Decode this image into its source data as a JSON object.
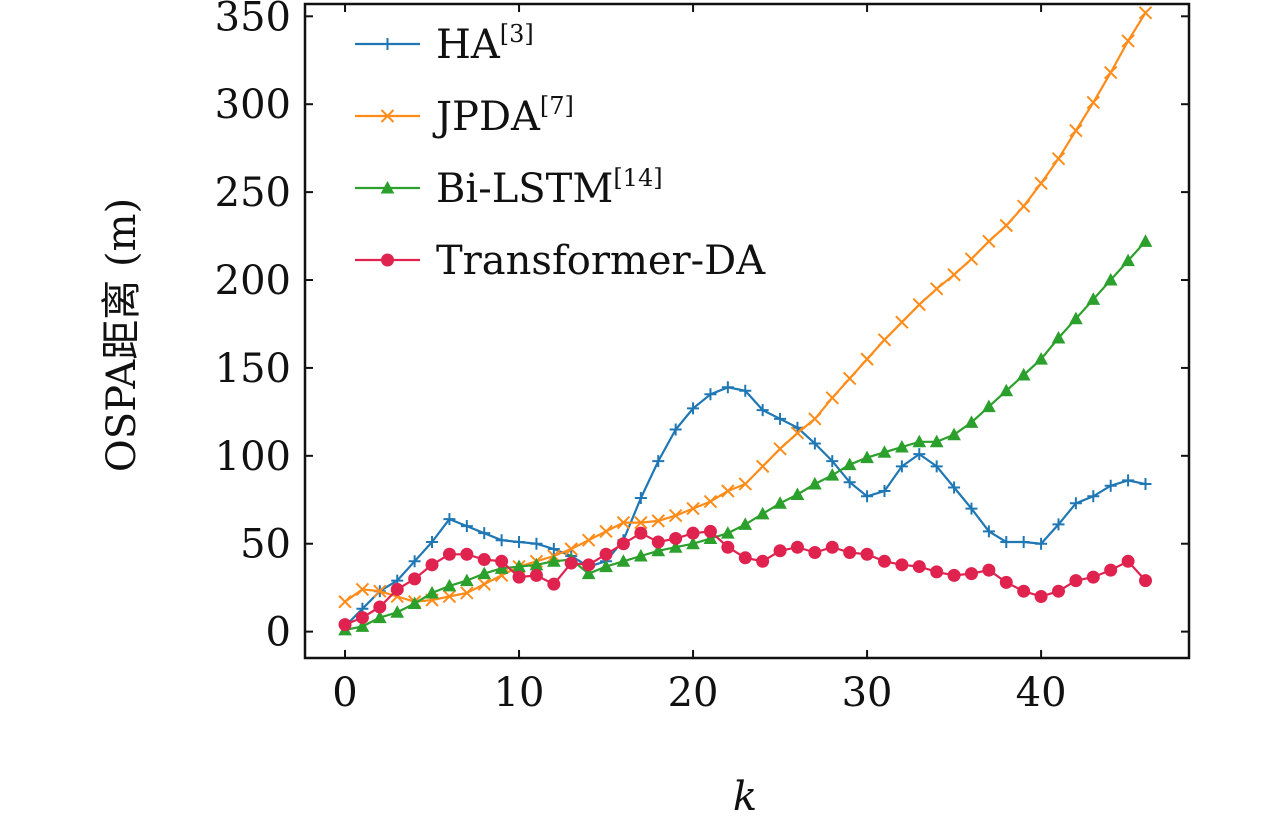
{
  "chart_data": {
    "type": "line",
    "xlabel": "k",
    "ylabel": "OSPA距离 (m)",
    "xlim": [
      -2.3,
      48.5
    ],
    "ylim": [
      -15,
      357
    ],
    "xticks": [
      0,
      10,
      20,
      30,
      40
    ],
    "yticks": [
      0,
      50,
      100,
      150,
      200,
      250,
      300,
      350
    ],
    "grid": false,
    "legend_position": "top-left",
    "x": [
      0,
      1,
      2,
      3,
      4,
      5,
      6,
      7,
      8,
      9,
      10,
      11,
      12,
      13,
      14,
      15,
      16,
      17,
      18,
      19,
      20,
      21,
      22,
      23,
      24,
      25,
      26,
      27,
      28,
      29,
      30,
      31,
      32,
      33,
      34,
      35,
      36,
      37,
      38,
      39,
      40,
      41,
      42,
      43,
      44,
      45,
      46
    ],
    "series": [
      {
        "name": "HA",
        "legend_sup": "[3]",
        "color": "#1f77b4",
        "marker": "plus",
        "values": [
          3,
          13,
          23,
          29,
          40,
          51,
          64,
          60,
          56,
          52,
          51,
          50,
          47,
          43,
          37,
          40,
          52,
          76,
          97,
          115,
          127,
          135,
          139,
          137,
          126,
          121,
          116,
          107,
          97,
          85,
          77,
          80,
          94,
          101,
          94,
          82,
          70,
          57,
          51,
          51,
          50,
          61,
          73,
          77,
          83,
          86,
          84
        ]
      },
      {
        "name": "JPDA",
        "legend_sup": "[7]",
        "color": "#ff8c1a",
        "marker": "x",
        "values": [
          17,
          24,
          23,
          20,
          17,
          18,
          20,
          22,
          27,
          32,
          37,
          40,
          43,
          47,
          52,
          57,
          62,
          62,
          63,
          66,
          70,
          74,
          80,
          84,
          94,
          104,
          113,
          121,
          133,
          144,
          155,
          166,
          176,
          186,
          195,
          203,
          212,
          222,
          231,
          242,
          255,
          269,
          285,
          301,
          318,
          336,
          352
        ]
      },
      {
        "name": "Bi-LSTM",
        "legend_sup": "[14]",
        "color": "#2ca02c",
        "marker": "triangle",
        "values": [
          1,
          3,
          8,
          11,
          16,
          22,
          26,
          29,
          33,
          36,
          37,
          38,
          40,
          41,
          33,
          37,
          40,
          43,
          46,
          48,
          50,
          53,
          56,
          61,
          67,
          73,
          78,
          84,
          89,
          95,
          99,
          102,
          105,
          108,
          108,
          112,
          119,
          128,
          137,
          146,
          155,
          167,
          178,
          189,
          200,
          211,
          222
        ]
      },
      {
        "name": "Transformer-DA",
        "legend_sup": "",
        "color": "#e0224f",
        "marker": "circle",
        "values": [
          4,
          8,
          14,
          24,
          30,
          38,
          44,
          44,
          41,
          40,
          31,
          32,
          27,
          39,
          38,
          44,
          50,
          56,
          51,
          53,
          56,
          57,
          48,
          42,
          40,
          46,
          48,
          45,
          48,
          45,
          44,
          40,
          38,
          37,
          34,
          32,
          33,
          35,
          28,
          23,
          20,
          23,
          29,
          31,
          35,
          40,
          29
        ]
      }
    ]
  }
}
